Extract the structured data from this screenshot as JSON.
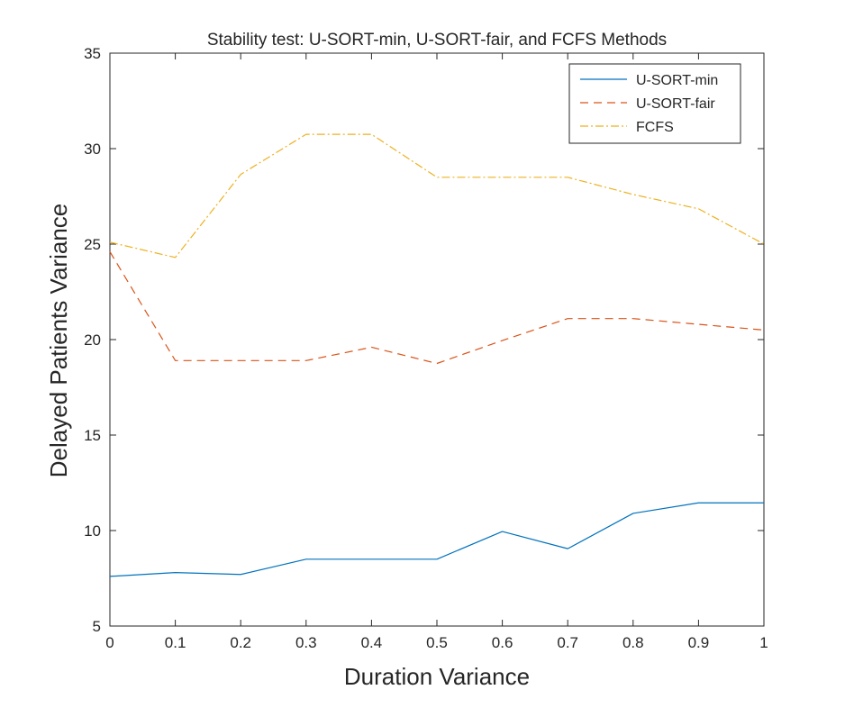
{
  "chart_data": {
    "type": "line",
    "title": "Stability test: U-SORT-min, U-SORT-fair, and FCFS Methods",
    "xlabel": "Duration Variance",
    "ylabel": "Delayed Patients Variance",
    "xlim": [
      0,
      1
    ],
    "ylim": [
      5,
      35
    ],
    "x": [
      0,
      0.1,
      0.2,
      0.3,
      0.4,
      0.5,
      0.6,
      0.7,
      0.8,
      0.9,
      1
    ],
    "x_tick_labels": [
      "0",
      "0.1",
      "0.2",
      "0.3",
      "0.4",
      "0.5",
      "0.6",
      "0.7",
      "0.8",
      "0.9",
      "1"
    ],
    "y_ticks": [
      5,
      10,
      15,
      20,
      25,
      30,
      35
    ],
    "y_tick_labels": [
      "5",
      "10",
      "15",
      "20",
      "25",
      "30",
      "35"
    ],
    "grid": false,
    "legend_position": "top-right",
    "series": [
      {
        "name": "U-SORT-min",
        "color": "#0072BD",
        "line_style": "solid",
        "values": [
          7.6,
          7.8,
          7.7,
          8.5,
          8.5,
          8.5,
          9.95,
          9.05,
          10.9,
          11.45,
          11.45
        ]
      },
      {
        "name": "U-SORT-fair",
        "color": "#D95319",
        "line_style": "dashed",
        "values": [
          24.6,
          18.9,
          18.9,
          18.9,
          19.6,
          18.75,
          19.95,
          21.1,
          21.1,
          20.8,
          20.5
        ]
      },
      {
        "name": "FCFS",
        "color": "#EDB120",
        "line_style": "dash-dot",
        "values": [
          25.1,
          24.3,
          28.65,
          30.75,
          30.75,
          28.5,
          28.5,
          28.5,
          27.6,
          26.85,
          25.0
        ]
      }
    ]
  }
}
